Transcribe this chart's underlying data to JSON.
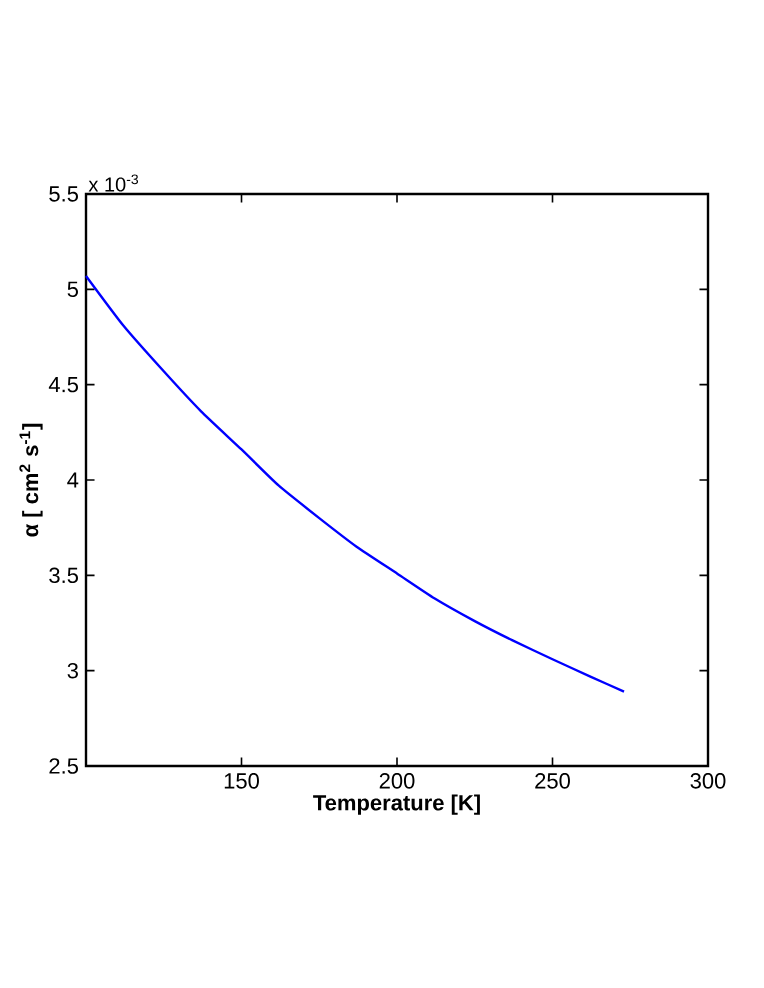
{
  "chart_data": {
    "type": "line",
    "xlabel": "Temperature [K]",
    "ylabel": "α [ cm$^{2}$ s$^{-1}$]",
    "annotations": [
      "x 10$^{-3}$"
    ],
    "xlim": [
      100,
      300
    ],
    "xticks": [
      150,
      200,
      250,
      300
    ],
    "ylim": [
      2.5,
      5.5
    ],
    "yticks": [
      2.5,
      3,
      3.5,
      4,
      4.5,
      5,
      5.5
    ],
    "grid": false,
    "marker": "none",
    "line_style": "solid",
    "series": [
      {
        "color": "#0000ff",
        "x": [
          100,
          112,
          125,
          137,
          150,
          162,
          175,
          187,
          200,
          212,
          225,
          237,
          250,
          262,
          273
        ],
        "values": [
          5.07,
          4.81,
          4.57,
          4.36,
          4.16,
          3.97,
          3.8,
          3.65,
          3.51,
          3.38,
          3.26,
          3.16,
          3.06,
          2.97,
          2.89
        ]
      }
    ]
  }
}
